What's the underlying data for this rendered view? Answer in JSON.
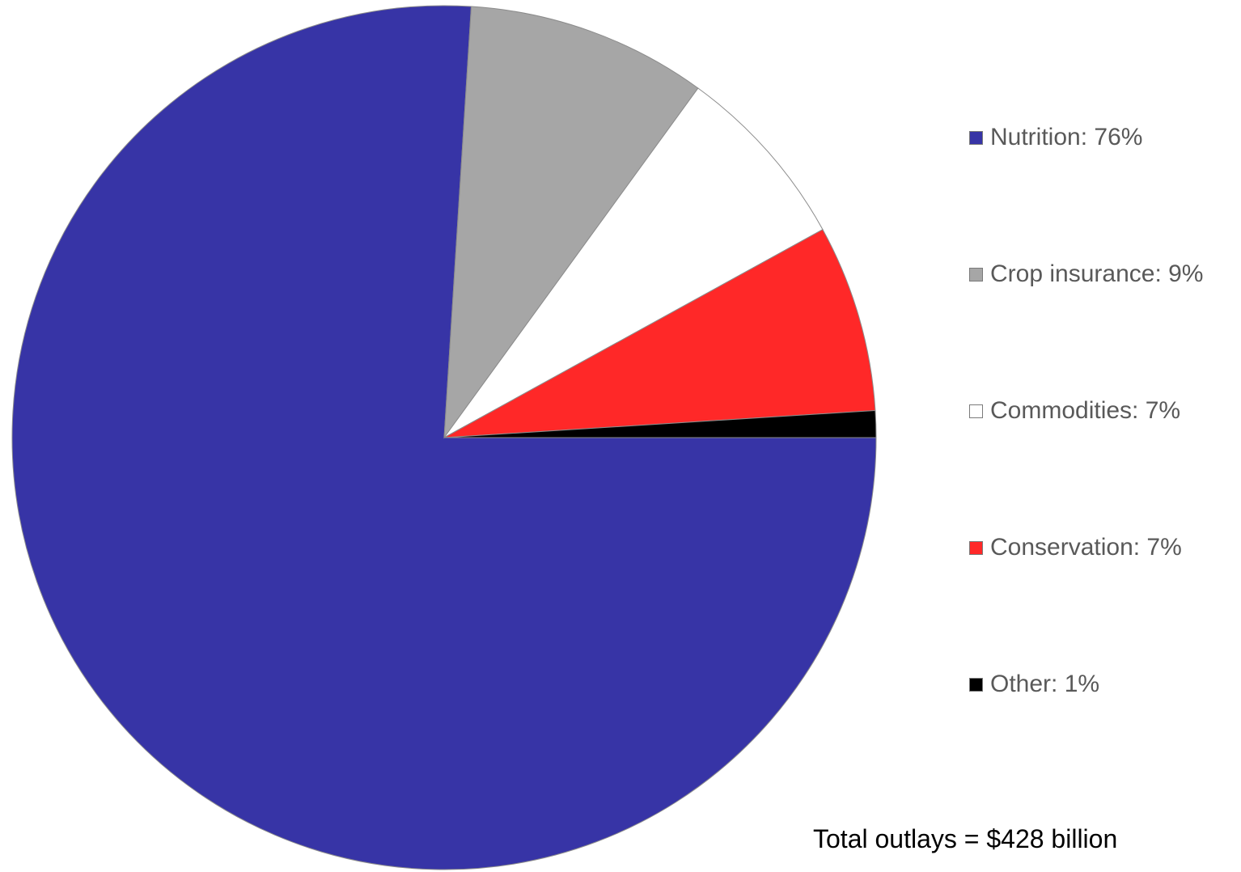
{
  "chart_data": {
    "type": "pie",
    "slices": [
      {
        "label": "Nutrition: 76%",
        "category": "Nutrition",
        "value": 76,
        "color": "#3734a6"
      },
      {
        "label": "Crop insurance: 9%",
        "category": "Crop insurance",
        "value": 9,
        "color": "#a6a6a6"
      },
      {
        "label": "Commodities: 7%",
        "category": "Commodities",
        "value": 7,
        "color": "#ffffff"
      },
      {
        "label": "Conservation: 7%",
        "category": "Conservation",
        "value": 7,
        "color": "#ff2828"
      },
      {
        "label": "Other: 1%",
        "category": "Other",
        "value": 1,
        "color": "#000000"
      }
    ],
    "legend_position": "right",
    "annotation": "Total outlays = $428 billion"
  }
}
